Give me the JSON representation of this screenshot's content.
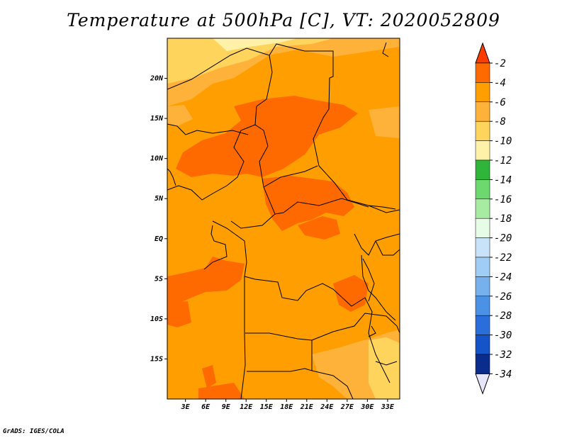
{
  "title": "Temperature at 500hPa [C], VT: 2020052809",
  "credit": "GrADS: IGES/COLA",
  "map": {
    "lat_ticks": [
      {
        "label": "20N",
        "lat": 20
      },
      {
        "label": "15N",
        "lat": 15
      },
      {
        "label": "10N",
        "lat": 10
      },
      {
        "label": "5N",
        "lat": 5
      },
      {
        "label": "EQ",
        "lat": 0
      },
      {
        "label": "5S",
        "lat": -5
      },
      {
        "label": "10S",
        "lat": -10
      },
      {
        "label": "15S",
        "lat": -15
      }
    ],
    "lon_ticks": [
      {
        "label": "3E",
        "lon": 3
      },
      {
        "label": "6E",
        "lon": 6
      },
      {
        "label": "9E",
        "lon": 9
      },
      {
        "label": "12E",
        "lon": 12
      },
      {
        "label": "15E",
        "lon": 15
      },
      {
        "label": "18E",
        "lon": 18
      },
      {
        "label": "21E",
        "lon": 21
      },
      {
        "label": "24E",
        "lon": 24
      },
      {
        "label": "27E",
        "lon": 27
      },
      {
        "label": "30E",
        "lon": 30
      },
      {
        "label": "33E",
        "lon": 33
      }
    ],
    "lat_range": [
      -20,
      25
    ],
    "lon_range": [
      0.3,
      34.8
    ]
  },
  "colorbar": {
    "labels": [
      "-2",
      "-4",
      "-6",
      "-8",
      "-10",
      "-12",
      "-14",
      "-16",
      "-18",
      "-20",
      "-22",
      "-24",
      "-26",
      "-28",
      "-30",
      "-32",
      "-34"
    ],
    "colors": [
      "#ff6a00",
      "#ff9e00",
      "#ffb23a",
      "#ffd45c",
      "#fff2a8",
      "#2fb53a",
      "#6dd86d",
      "#a6eba1",
      "#e6fce6",
      "#c8e2fa",
      "#a0cdf5",
      "#76b1ee",
      "#4b92e7",
      "#2a6edc",
      "#1553c8",
      "#0a2d8d"
    ],
    "top_arrow_color": "#ff3c00",
    "bottom_arrow_color": "#e6e6fa"
  }
}
